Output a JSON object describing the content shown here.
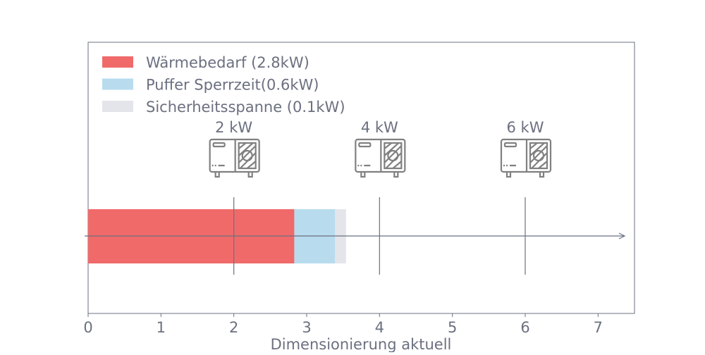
{
  "chart_data": {
    "type": "bar",
    "orientation": "horizontal",
    "stacked": true,
    "xlabel": "Dimensionierung aktuell",
    "ylabel": "",
    "xlim": [
      0,
      7.5
    ],
    "xticks": [
      "0",
      "1",
      "2",
      "3",
      "4",
      "5",
      "6",
      "7"
    ],
    "grid": false,
    "legend_placement": "top-left",
    "series": [
      {
        "name": "Wärmebedarf (2.8kW)",
        "values": [
          2.83
        ],
        "color": "#f06a6a"
      },
      {
        "name": "Puffer Sperrzeit(0.6kW)",
        "values": [
          0.56
        ],
        "color": "#b8dcee"
      },
      {
        "name": "Sicherheitsspanne (0.1kW)",
        "values": [
          0.15
        ],
        "color": "#e4e5ea"
      }
    ],
    "markers": [
      {
        "x": 2,
        "label": "2 kW",
        "icon": "heat-pump-icon"
      },
      {
        "x": 4,
        "label": "4 kW",
        "icon": "heat-pump-icon"
      },
      {
        "x": 6,
        "label": "6 kW",
        "icon": "heat-pump-icon"
      }
    ],
    "colors": {
      "axis": "#6b7080",
      "icon": "#808080"
    }
  }
}
